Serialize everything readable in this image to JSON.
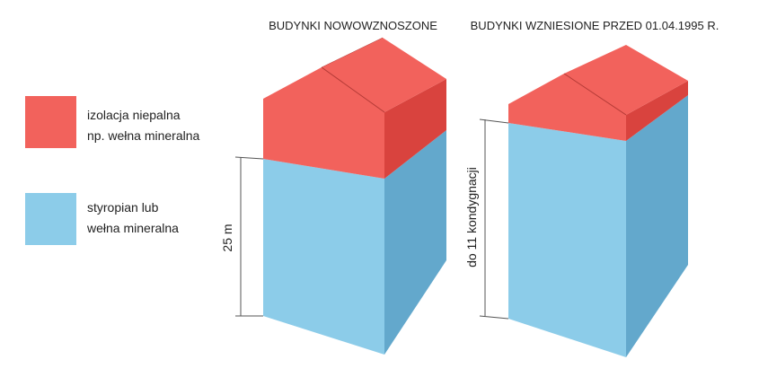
{
  "legend": [
    {
      "lines": [
        "izolacja niepalna",
        "np. wełna mineralna"
      ]
    },
    {
      "lines": [
        "styropian lub",
        "wełna mineralna"
      ]
    }
  ],
  "buildings": [
    {
      "title": "BUDYNKI NOWOWZNOSZONE",
      "dimension": "25 m"
    },
    {
      "title": "BUDYNKI WZNIESIONE PRZED 01.04.1995 R.",
      "dimension": "do 11 kondygnacji"
    }
  ]
}
